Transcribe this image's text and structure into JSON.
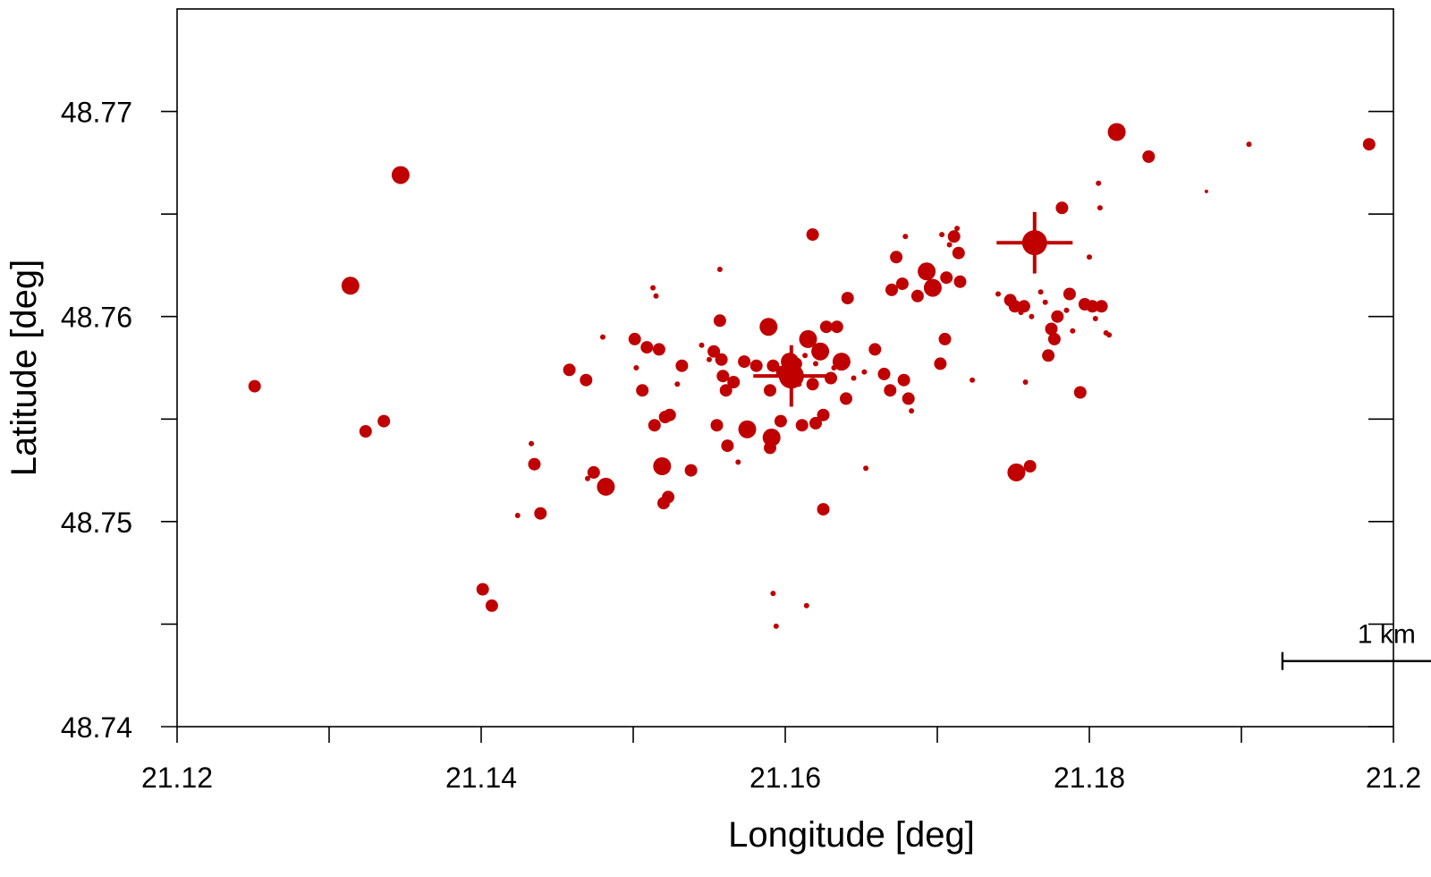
{
  "chart_data": {
    "type": "scatter",
    "xlabel": "Longitude [deg]",
    "ylabel": "Latitude [deg]",
    "xlim": [
      21.12,
      21.2
    ],
    "ylim": [
      48.74,
      48.775
    ],
    "x_ticks": [
      21.12,
      21.14,
      21.16,
      21.18,
      21.2
    ],
    "x_tick_labels": [
      "21.12",
      "21.14",
      "21.16",
      "21.18",
      "21.2"
    ],
    "x_minor_ticks": [
      21.13,
      21.15,
      21.17,
      21.19
    ],
    "y_ticks": [
      48.74,
      48.75,
      48.76,
      48.77
    ],
    "y_tick_labels": [
      "48.74",
      "48.75",
      "48.76",
      "48.77"
    ],
    "y_minor_ticks": [
      48.745,
      48.755,
      48.765
    ],
    "grid": false,
    "legend": "none",
    "marker_color": "#c00000",
    "scale_bar": {
      "label": "1 km",
      "x_start": 21.1927,
      "x_end": 21.2064,
      "y": 48.7432
    },
    "crosses": [
      {
        "x": 21.1604,
        "y": 48.7571,
        "dx": 0.0025,
        "dy": 0.0015
      },
      {
        "x": 21.1764,
        "y": 48.7636,
        "dx": 0.0025,
        "dy": 0.0015
      }
    ],
    "points": [
      [
        21.1251,
        48.7566,
        7
      ],
      [
        21.1314,
        48.7615,
        10
      ],
      [
        21.1347,
        48.7669,
        10
      ],
      [
        21.1324,
        48.7544,
        7
      ],
      [
        21.1336,
        48.7549,
        7
      ],
      [
        21.1401,
        48.7467,
        7
      ],
      [
        21.1407,
        48.7459,
        7
      ],
      [
        21.1424,
        48.7503,
        3
      ],
      [
        21.1433,
        48.7538,
        3
      ],
      [
        21.1435,
        48.7528,
        7
      ],
      [
        21.1439,
        48.7504,
        7
      ],
      [
        21.1458,
        48.7574,
        7
      ],
      [
        21.1469,
        48.7569,
        7
      ],
      [
        21.1474,
        48.7524,
        7
      ],
      [
        21.147,
        48.7521,
        3
      ],
      [
        21.1482,
        48.7517,
        10
      ],
      [
        21.148,
        48.759,
        3
      ],
      [
        21.1501,
        48.7589,
        7
      ],
      [
        21.1502,
        48.7575,
        3
      ],
      [
        21.1506,
        48.7564,
        7
      ],
      [
        21.1509,
        48.7585,
        7
      ],
      [
        21.1517,
        48.7584,
        7
      ],
      [
        21.1513,
        48.7614,
        3
      ],
      [
        21.1515,
        48.761,
        3
      ],
      [
        21.1514,
        48.7547,
        7
      ],
      [
        21.1519,
        48.7527,
        10
      ],
      [
        21.1521,
        48.7551,
        7
      ],
      [
        21.1524,
        48.7552,
        7
      ],
      [
        21.1523,
        48.7512,
        7
      ],
      [
        21.152,
        48.7509,
        7
      ],
      [
        21.1529,
        48.7567,
        3
      ],
      [
        21.1532,
        48.7576,
        7
      ],
      [
        21.1538,
        48.7525,
        7
      ],
      [
        21.1545,
        48.7586,
        3
      ],
      [
        21.155,
        48.7579,
        3
      ],
      [
        21.1553,
        48.7583,
        7
      ],
      [
        21.1555,
        48.7547,
        7
      ],
      [
        21.1557,
        48.7598,
        7
      ],
      [
        21.1557,
        48.7623,
        3
      ],
      [
        21.1558,
        48.7579,
        7
      ],
      [
        21.1559,
        48.7571,
        7
      ],
      [
        21.1561,
        48.7564,
        7
      ],
      [
        21.1562,
        48.7537,
        7
      ],
      [
        21.1566,
        48.7568,
        7
      ],
      [
        21.1569,
        48.7529,
        3
      ],
      [
        21.1573,
        48.7578,
        7
      ],
      [
        21.1575,
        48.7545,
        10
      ],
      [
        21.1581,
        48.7576,
        7
      ],
      [
        21.1589,
        48.7595,
        10
      ],
      [
        21.159,
        48.7564,
        7
      ],
      [
        21.1591,
        48.7541,
        10
      ],
      [
        21.1592,
        48.7576,
        7
      ],
      [
        21.159,
        48.7536,
        7
      ],
      [
        21.1592,
        48.7465,
        3
      ],
      [
        21.1594,
        48.7449,
        3
      ],
      [
        21.1597,
        48.7549,
        7
      ],
      [
        21.1598,
        48.7573,
        7
      ],
      [
        21.1603,
        48.7578,
        10
      ],
      [
        21.1604,
        48.7571,
        14
      ],
      [
        21.1607,
        48.7577,
        7
      ],
      [
        21.1609,
        48.7567,
        3
      ],
      [
        21.1611,
        48.7547,
        7
      ],
      [
        21.1613,
        48.7581,
        3
      ],
      [
        21.1614,
        48.7459,
        3
      ],
      [
        21.1615,
        48.7589,
        10
      ],
      [
        21.1618,
        48.764,
        7
      ],
      [
        21.1618,
        48.7567,
        7
      ],
      [
        21.162,
        48.7548,
        7
      ],
      [
        21.162,
        48.7577,
        3
      ],
      [
        21.1623,
        48.7583,
        10
      ],
      [
        21.1625,
        48.7552,
        7
      ],
      [
        21.1625,
        48.7506,
        7
      ],
      [
        21.1627,
        48.7595,
        7
      ],
      [
        21.163,
        48.757,
        7
      ],
      [
        21.1632,
        48.7575,
        3
      ],
      [
        21.1634,
        48.7595,
        7
      ],
      [
        21.1637,
        48.7578,
        10
      ],
      [
        21.164,
        48.756,
        7
      ],
      [
        21.1641,
        48.7609,
        7
      ],
      [
        21.1645,
        48.757,
        3
      ],
      [
        21.1652,
        48.7573,
        3
      ],
      [
        21.1653,
        48.7526,
        3
      ],
      [
        21.1659,
        48.7584,
        7
      ],
      [
        21.1665,
        48.7572,
        7
      ],
      [
        21.167,
        48.7613,
        7
      ],
      [
        21.1669,
        48.7564,
        7
      ],
      [
        21.1673,
        48.7629,
        7
      ],
      [
        21.1677,
        48.7616,
        7
      ],
      [
        21.1678,
        48.7569,
        7
      ],
      [
        21.1679,
        48.7639,
        3
      ],
      [
        21.1681,
        48.756,
        7
      ],
      [
        21.1683,
        48.7554,
        3
      ],
      [
        21.1687,
        48.761,
        7
      ],
      [
        21.1693,
        48.7622,
        10
      ],
      [
        21.1697,
        48.7614,
        10
      ],
      [
        21.1702,
        48.7577,
        7
      ],
      [
        21.1703,
        48.764,
        3
      ],
      [
        21.1706,
        48.7619,
        7
      ],
      [
        21.1705,
        48.7589,
        7
      ],
      [
        21.1708,
        48.7635,
        3
      ],
      [
        21.1711,
        48.7639,
        7
      ],
      [
        21.1713,
        48.7643,
        3
      ],
      [
        21.1714,
        48.7631,
        7
      ],
      [
        21.1715,
        48.7617,
        7
      ],
      [
        21.1723,
        48.7569,
        3
      ],
      [
        21.174,
        48.7611,
        3
      ],
      [
        21.1748,
        48.7608,
        7
      ],
      [
        21.1751,
        48.7605,
        7
      ],
      [
        21.1752,
        48.7524,
        10
      ],
      [
        21.1755,
        48.7602,
        3
      ],
      [
        21.1757,
        48.7605,
        7
      ],
      [
        21.1758,
        48.7568,
        3
      ],
      [
        21.1761,
        48.7527,
        7
      ],
      [
        21.1764,
        48.7636,
        14
      ],
      [
        21.1762,
        48.76,
        3
      ],
      [
        21.1768,
        48.7612,
        3
      ],
      [
        21.1771,
        48.7607,
        3
      ],
      [
        21.1773,
        48.7581,
        7
      ],
      [
        21.1775,
        48.7594,
        7
      ],
      [
        21.1777,
        48.7589,
        7
      ],
      [
        21.1779,
        48.76,
        7
      ],
      [
        21.1782,
        48.7653,
        7
      ],
      [
        21.1785,
        48.7603,
        3
      ],
      [
        21.1787,
        48.7611,
        7
      ],
      [
        21.1789,
        48.7593,
        3
      ],
      [
        21.1794,
        48.7563,
        7
      ],
      [
        21.1797,
        48.7606,
        7
      ],
      [
        21.18,
        48.7629,
        3
      ],
      [
        21.1802,
        48.7605,
        7
      ],
      [
        21.1804,
        48.7599,
        3
      ],
      [
        21.1806,
        48.7665,
        3
      ],
      [
        21.1807,
        48.7653,
        3
      ],
      [
        21.1808,
        48.7605,
        7
      ],
      [
        21.1811,
        48.7592,
        3
      ],
      [
        21.1813,
        48.7591,
        3
      ],
      [
        21.1818,
        48.769,
        10
      ],
      [
        21.1839,
        48.7678,
        7
      ],
      [
        21.1877,
        48.7661,
        2
      ],
      [
        21.1905,
        48.7684,
        3
      ],
      [
        21.1984,
        48.7684,
        7
      ]
    ]
  }
}
